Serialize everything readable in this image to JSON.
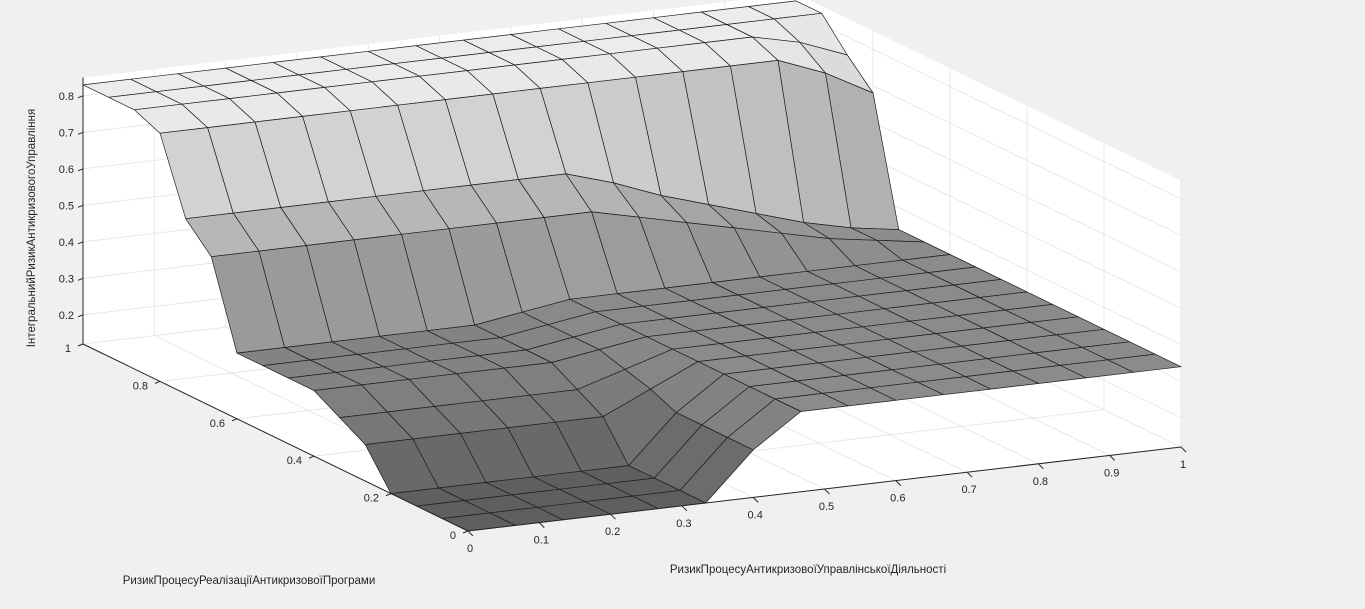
{
  "chart_data": {
    "type": "surface",
    "title": "",
    "xlabel": "РизикПроцесуАнтикризовоїУправлінськоїДіяльності",
    "ylabel": "РизикПроцесуРеалізаціїАнтикризовоїПрограми",
    "zlabel": "ІнтегральнийРизикАнтикризовогоУправління",
    "xlim": [
      0,
      1
    ],
    "ylim": [
      0,
      1
    ],
    "zlim": [
      0.12,
      0.85
    ],
    "x_ticks": [
      "0",
      "0.1",
      "0.2",
      "0.3",
      "0.4",
      "0.5",
      "0.6",
      "0.7",
      "0.8",
      "0.9",
      "1"
    ],
    "y_ticks": [
      "0",
      "0.2",
      "0.4",
      "0.6",
      "0.8",
      "1"
    ],
    "z_ticks": [
      "0.2",
      "0.3",
      "0.4",
      "0.5",
      "0.6",
      "0.7",
      "0.8"
    ],
    "grid": true,
    "shading": "gray faceted",
    "x": [
      0,
      0.0667,
      0.1333,
      0.2,
      0.2667,
      0.3333,
      0.4,
      0.4667,
      0.5333,
      0.6,
      0.6667,
      0.7333,
      0.8,
      0.8667,
      0.9333,
      1
    ],
    "y": [
      0,
      0.0667,
      0.1333,
      0.2,
      0.2667,
      0.3333,
      0.4,
      0.4667,
      0.5333,
      0.6,
      0.6667,
      0.7333,
      0.8,
      0.8667,
      0.9333,
      1
    ],
    "z": [
      [
        0.12,
        0.12,
        0.12,
        0.12,
        0.12,
        0.12,
        0.25,
        0.34,
        0.34,
        0.34,
        0.34,
        0.34,
        0.34,
        0.34,
        0.34,
        0.34
      ],
      [
        0.12,
        0.12,
        0.12,
        0.12,
        0.12,
        0.12,
        0.25,
        0.34,
        0.34,
        0.34,
        0.34,
        0.34,
        0.34,
        0.34,
        0.34,
        0.34
      ],
      [
        0.12,
        0.12,
        0.12,
        0.12,
        0.12,
        0.12,
        0.25,
        0.34,
        0.34,
        0.34,
        0.34,
        0.34,
        0.34,
        0.34,
        0.34,
        0.34
      ],
      [
        0.12,
        0.12,
        0.12,
        0.12,
        0.12,
        0.12,
        0.25,
        0.34,
        0.34,
        0.34,
        0.34,
        0.34,
        0.34,
        0.34,
        0.34,
        0.34
      ],
      [
        0.22,
        0.22,
        0.22,
        0.22,
        0.22,
        0.22,
        0.28,
        0.34,
        0.34,
        0.34,
        0.34,
        0.34,
        0.34,
        0.34,
        0.34,
        0.34
      ],
      [
        0.26,
        0.26,
        0.26,
        0.26,
        0.26,
        0.26,
        0.3,
        0.34,
        0.34,
        0.34,
        0.34,
        0.34,
        0.34,
        0.34,
        0.34,
        0.34
      ],
      [
        0.3,
        0.3,
        0.3,
        0.3,
        0.3,
        0.3,
        0.32,
        0.34,
        0.34,
        0.34,
        0.34,
        0.34,
        0.34,
        0.34,
        0.34,
        0.34
      ],
      [
        0.3,
        0.3,
        0.3,
        0.3,
        0.3,
        0.3,
        0.32,
        0.34,
        0.34,
        0.34,
        0.34,
        0.34,
        0.34,
        0.34,
        0.34,
        0.34
      ],
      [
        0.3,
        0.3,
        0.3,
        0.3,
        0.3,
        0.3,
        0.32,
        0.34,
        0.34,
        0.34,
        0.34,
        0.34,
        0.34,
        0.34,
        0.34,
        0.34
      ],
      [
        0.3,
        0.3,
        0.3,
        0.3,
        0.3,
        0.3,
        0.32,
        0.34,
        0.34,
        0.34,
        0.34,
        0.34,
        0.34,
        0.34,
        0.34,
        0.34
      ],
      [
        0.53,
        0.53,
        0.53,
        0.53,
        0.53,
        0.53,
        0.53,
        0.53,
        0.53,
        0.5,
        0.47,
        0.44,
        0.41,
        0.38,
        0.36,
        0.34
      ],
      [
        0.6,
        0.6,
        0.6,
        0.6,
        0.6,
        0.6,
        0.6,
        0.6,
        0.6,
        0.56,
        0.51,
        0.47,
        0.43,
        0.39,
        0.36,
        0.34
      ],
      [
        0.8,
        0.8,
        0.8,
        0.8,
        0.8,
        0.8,
        0.8,
        0.8,
        0.8,
        0.8,
        0.8,
        0.8,
        0.8,
        0.8,
        0.75,
        0.68
      ],
      [
        0.83,
        0.83,
        0.83,
        0.83,
        0.83,
        0.83,
        0.83,
        0.83,
        0.83,
        0.83,
        0.83,
        0.83,
        0.83,
        0.83,
        0.8,
        0.75
      ],
      [
        0.83,
        0.83,
        0.83,
        0.83,
        0.83,
        0.83,
        0.83,
        0.83,
        0.83,
        0.83,
        0.83,
        0.83,
        0.83,
        0.83,
        0.83,
        0.83
      ],
      [
        0.83,
        0.83,
        0.83,
        0.83,
        0.83,
        0.83,
        0.83,
        0.83,
        0.83,
        0.83,
        0.83,
        0.83,
        0.83,
        0.83,
        0.83,
        0.83
      ]
    ]
  }
}
